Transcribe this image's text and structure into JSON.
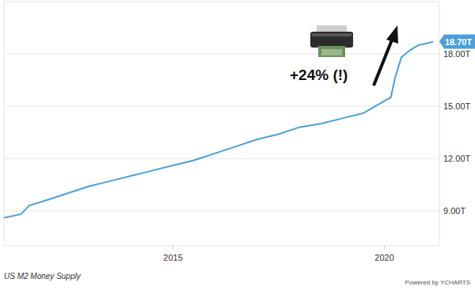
{
  "chart_data": {
    "type": "line",
    "title": "US M2 Money Supply",
    "credit": "Powered by YCHARTS",
    "annotation": "+24% (!)",
    "x": [
      2011.0,
      2011.4,
      2011.6,
      2012.0,
      2012.5,
      2013.0,
      2013.5,
      2014.0,
      2014.5,
      2015.0,
      2015.5,
      2016.0,
      2016.5,
      2017.0,
      2017.5,
      2018.0,
      2018.5,
      2019.0,
      2019.5,
      2020.0,
      2020.15,
      2020.25,
      2020.4,
      2020.6,
      2020.8,
      2021.0,
      2021.15
    ],
    "values": [
      8.6,
      8.8,
      9.3,
      9.6,
      10.0,
      10.4,
      10.7,
      11.0,
      11.3,
      11.6,
      11.9,
      12.3,
      12.7,
      13.1,
      13.4,
      13.8,
      14.0,
      14.3,
      14.6,
      15.3,
      15.5,
      16.6,
      17.8,
      18.2,
      18.5,
      18.6,
      18.7
    ],
    "end_label": {
      "value": 18.7,
      "label": "18.70T"
    },
    "color": "#4a9fdc",
    "line_style": "solid",
    "grid": true,
    "xlim": [
      2011.0,
      2021.3
    ],
    "xticks": [
      2015,
      2020
    ],
    "ylim": [
      7,
      21
    ],
    "yticks": [
      {
        "value": 9,
        "label": "9.00T"
      },
      {
        "value": 12,
        "label": "12.00T"
      },
      {
        "value": 15,
        "label": "15.00T"
      },
      {
        "value": 18,
        "label": "18.00T"
      }
    ]
  }
}
